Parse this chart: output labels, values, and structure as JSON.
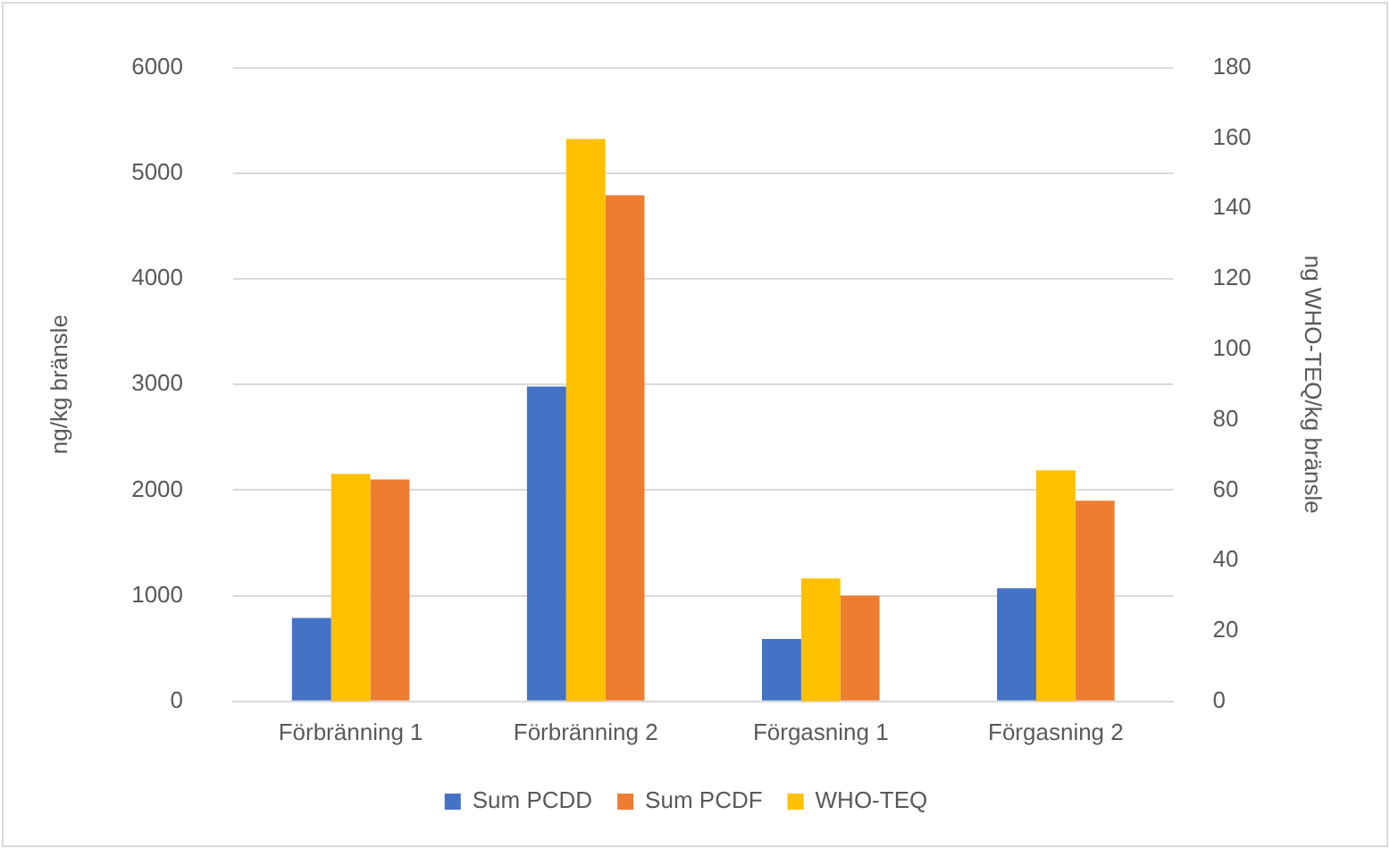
{
  "chart_data": {
    "type": "bar",
    "ylabel": "ng/kg bränsle",
    "y2label": "ng WHO-TEQ/kg bränsle",
    "categories": [
      "Förbränning 1",
      "Förbränning 2",
      "Förgasning 1",
      "Förgasning 2"
    ],
    "series": [
      {
        "name": "Sum PCDD",
        "color": "#4472c4",
        "values": [
          790,
          2980,
          590,
          1070
        ]
      },
      {
        "name": "WHO-TEQ",
        "color": "#ffc000",
        "axis": "y2",
        "values": [
          64.6,
          159.7,
          34.9,
          65.6
        ]
      },
      {
        "name": "Sum PCDF",
        "color": "#ed7d31",
        "values": [
          2100,
          4790,
          1000,
          1900
        ]
      }
    ],
    "ylim": [
      0,
      6000
    ],
    "yticks": [
      0,
      1000,
      2000,
      3000,
      4000,
      5000,
      6000
    ],
    "y2lim": [
      0,
      180
    ],
    "y2ticks": [
      0,
      20,
      40,
      60,
      80,
      100,
      120,
      140,
      160,
      180
    ],
    "grid": "y",
    "legend": "bottom"
  }
}
